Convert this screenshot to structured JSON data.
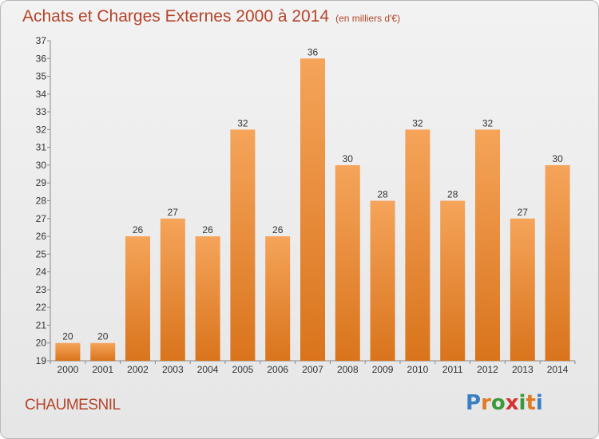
{
  "title": "Achats et Charges Externes 2000 à 2014",
  "unit_note": "(en milliers d'€)",
  "commune": "CHAUMESNIL",
  "logo": {
    "letters": [
      "P",
      "r",
      "o",
      "x",
      "i",
      "t",
      "i"
    ],
    "colors": [
      "#3a7fc1",
      "#e07b24",
      "#3a9a3a",
      "#d62f2f",
      "#3a9a3a",
      "#e07b24",
      "#3a7fc1"
    ]
  },
  "colors": {
    "bar_top": "#f5a45a",
    "bar_bottom": "#d9741c",
    "accent": "#b5442a"
  },
  "chart_data": {
    "type": "bar",
    "title": "Achats et Charges Externes 2000 à 2014",
    "categories": [
      "2000",
      "2001",
      "2002",
      "2003",
      "2004",
      "2005",
      "2006",
      "2007",
      "2008",
      "2009",
      "2010",
      "2011",
      "2012",
      "2013",
      "2014"
    ],
    "values": [
      20,
      20,
      26,
      27,
      26,
      32,
      26,
      36,
      30,
      28,
      32,
      28,
      32,
      27,
      30
    ],
    "ylim": [
      19,
      37
    ],
    "yticks": [
      19,
      20,
      21,
      22,
      23,
      24,
      25,
      26,
      27,
      28,
      29,
      30,
      31,
      32,
      33,
      34,
      35,
      36,
      37
    ],
    "grid": false,
    "data_labels": true
  }
}
